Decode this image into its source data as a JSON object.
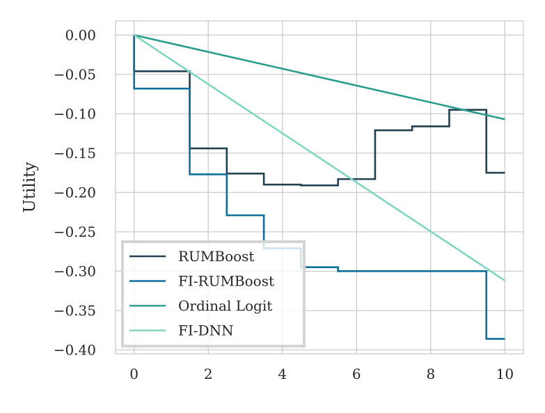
{
  "chart_data": {
    "type": "line",
    "title": "",
    "xlabel": "",
    "ylabel": "Utility",
    "xlim": [
      -0.5,
      10.5
    ],
    "ylim": [
      -0.405,
      0.018
    ],
    "xticks": [
      0,
      2,
      4,
      6,
      8,
      10
    ],
    "xtick_labels": [
      "0",
      "2",
      "4",
      "6",
      "8",
      "10"
    ],
    "yticks": [
      0.0,
      -0.05,
      -0.1,
      -0.15,
      -0.2,
      -0.25,
      -0.3,
      -0.35,
      -0.4
    ],
    "ytick_labels": [
      "0.00",
      "−0.05",
      "−0.10",
      "−0.15",
      "−0.20",
      "−0.25",
      "−0.30",
      "−0.35",
      "−0.40"
    ],
    "grid": true,
    "legend_position": "lower-left",
    "series": [
      {
        "name": "RUMBoost",
        "color": "#22404f",
        "step": true,
        "points": [
          [
            0,
            0
          ],
          [
            0,
            -0.046
          ],
          [
            1.5,
            -0.046
          ],
          [
            1.5,
            -0.144
          ],
          [
            2.5,
            -0.144
          ],
          [
            2.5,
            -0.176
          ],
          [
            3.5,
            -0.176
          ],
          [
            3.5,
            -0.19
          ],
          [
            4.5,
            -0.19
          ],
          [
            4.5,
            -0.191
          ],
          [
            5.5,
            -0.191
          ],
          [
            5.5,
            -0.183
          ],
          [
            6.5,
            -0.183
          ],
          [
            6.5,
            -0.121
          ],
          [
            7.5,
            -0.121
          ],
          [
            7.5,
            -0.116
          ],
          [
            8.5,
            -0.116
          ],
          [
            8.5,
            -0.095
          ],
          [
            9.5,
            -0.095
          ],
          [
            9.5,
            -0.175
          ],
          [
            10,
            -0.175
          ]
        ]
      },
      {
        "name": "FI-RUMBoost",
        "color": "#0f6f9a",
        "step": true,
        "points": [
          [
            0,
            0
          ],
          [
            0,
            -0.068
          ],
          [
            1.5,
            -0.068
          ],
          [
            1.5,
            -0.177
          ],
          [
            2.5,
            -0.177
          ],
          [
            2.5,
            -0.229
          ],
          [
            3.5,
            -0.229
          ],
          [
            3.5,
            -0.271
          ],
          [
            4.5,
            -0.271
          ],
          [
            4.5,
            -0.295
          ],
          [
            5.5,
            -0.295
          ],
          [
            5.5,
            -0.3
          ],
          [
            9.5,
            -0.3
          ],
          [
            9.5,
            -0.386
          ],
          [
            10,
            -0.386
          ]
        ]
      },
      {
        "name": "Ordinal Logit",
        "color": "#2a9d8f",
        "step": false,
        "points": [
          [
            0,
            0
          ],
          [
            10,
            -0.107
          ]
        ]
      },
      {
        "name": "FI-DNN",
        "color": "#80d6bf",
        "step": false,
        "points": [
          [
            0,
            0
          ],
          [
            10,
            -0.312
          ]
        ]
      }
    ]
  }
}
